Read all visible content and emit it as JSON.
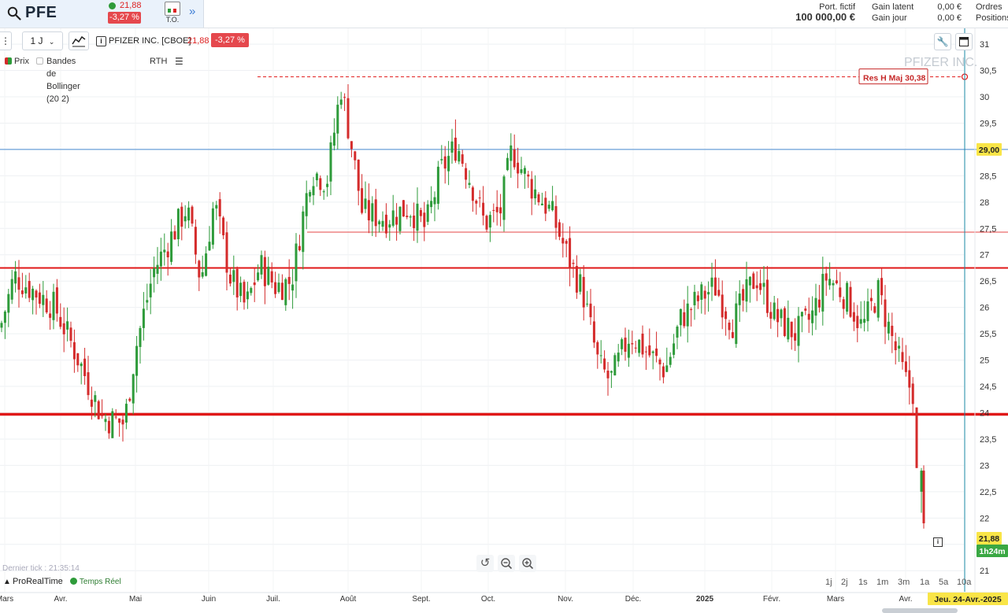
{
  "header": {
    "symbol": "PFE",
    "quote_price": "21,88",
    "quote_change": "-3,27 %",
    "to_label": "T.O.",
    "expand_icon": "double-chevron-right-icon",
    "portfolio_label": "Port. fictif",
    "portfolio_value": "100 000,00 €",
    "gain_latent_label": "Gain latent",
    "gain_latent_value": "0,00 €",
    "gain_jour_label": "Gain jour",
    "gain_jour_value": "0,00 €",
    "ordres_label": "Ordres",
    "positions_label": "Positions"
  },
  "toolbar": {
    "period": "1 J",
    "instrument_name": "PFIZER INC. [CBOE]",
    "instrument_price": "21,88",
    "instrument_change": "-3,27 %"
  },
  "legend": {
    "price_label": "Prix",
    "indicator_label": "Bandes de Bollinger (20 2)",
    "session_label": "RTH"
  },
  "watermark": "PFIZER INC.",
  "annotations": {
    "resistance_label": "Res H Maj  30,38",
    "line_29_label": "29,00",
    "last_price_label": "21,88",
    "time_left_label": "1h24m",
    "date_label": "Jeu. 24-Avr.-2025"
  },
  "footer": {
    "last_tick": "Dernier tick : 21:35:14",
    "brand": "ProRealTime",
    "realtime": "Temps Réel",
    "ranges": [
      "1j",
      "2j",
      "1s",
      "1m",
      "3m",
      "1a",
      "5a",
      "10a"
    ]
  },
  "colors": {
    "up": "#2e9b3a",
    "down": "#d42b2b",
    "accent": "#3a7bd5",
    "support_line": "#e01818",
    "blue_line": "#6aa0d8",
    "cursor_line": "#1a8aa5"
  },
  "chart_data": {
    "type": "candlestick",
    "title": "PFIZER INC.",
    "timeframe": "1 J",
    "x_labels": [
      "Mars",
      "Avr.",
      "Mai",
      "Juin",
      "Juil.",
      "Août",
      "Sept.",
      "Oct.",
      "Nov.",
      "Déc.",
      "2025",
      "Févr.",
      "Mars",
      "Avr."
    ],
    "y_ticks": [
      21,
      21.5,
      22,
      22.5,
      23,
      23.5,
      24,
      24.5,
      25,
      25.5,
      26,
      26.5,
      27,
      27.5,
      28,
      28.5,
      29,
      29.5,
      30,
      30.5,
      31
    ],
    "ylim": [
      21,
      31.3
    ],
    "horizontal_lines": [
      {
        "value": 30.38,
        "label": "Res H Maj 30,38",
        "style": "dashed-red"
      },
      {
        "value": 29.0,
        "label": "29,00",
        "style": "blue"
      },
      {
        "value": 27.43,
        "style": "thin-red"
      },
      {
        "value": 26.75,
        "style": "red"
      },
      {
        "value": 23.97,
        "style": "thick-red"
      }
    ],
    "last_price": 21.88,
    "closes_approx": [
      {
        "date": "2024-03",
        "close": 26.6
      },
      {
        "date": "2024-04",
        "close": 25.3
      },
      {
        "date": "2024-04-20",
        "close": 23.9
      },
      {
        "date": "2024-05",
        "close": 26.0
      },
      {
        "date": "2024-06",
        "close": 27.8
      },
      {
        "date": "2024-06-15",
        "close": 26.2
      },
      {
        "date": "2024-07",
        "close": 26.4
      },
      {
        "date": "2024-07-15",
        "close": 28.6
      },
      {
        "date": "2024-08",
        "close": 30.0
      },
      {
        "date": "2024-08-15",
        "close": 27.6
      },
      {
        "date": "2024-09",
        "close": 28.0
      },
      {
        "date": "2024-09-20",
        "close": 29.1
      },
      {
        "date": "2024-10",
        "close": 28.0
      },
      {
        "date": "2024-10-15",
        "close": 28.6
      },
      {
        "date": "2024-11",
        "close": 26.8
      },
      {
        "date": "2024-11-15",
        "close": 24.6
      },
      {
        "date": "2024-12",
        "close": 25.3
      },
      {
        "date": "2024-12-15",
        "close": 24.9
      },
      {
        "date": "2025-01",
        "close": 26.3
      },
      {
        "date": "2025-02",
        "close": 26.4
      },
      {
        "date": "2025-02-15",
        "close": 25.5
      },
      {
        "date": "2025-03",
        "close": 26.6
      },
      {
        "date": "2025-03-20",
        "close": 25.7
      },
      {
        "date": "2025-04",
        "close": 24.4
      },
      {
        "date": "2025-04-10",
        "close": 22.9
      },
      {
        "date": "2025-04-24",
        "close": 21.88
      }
    ]
  }
}
